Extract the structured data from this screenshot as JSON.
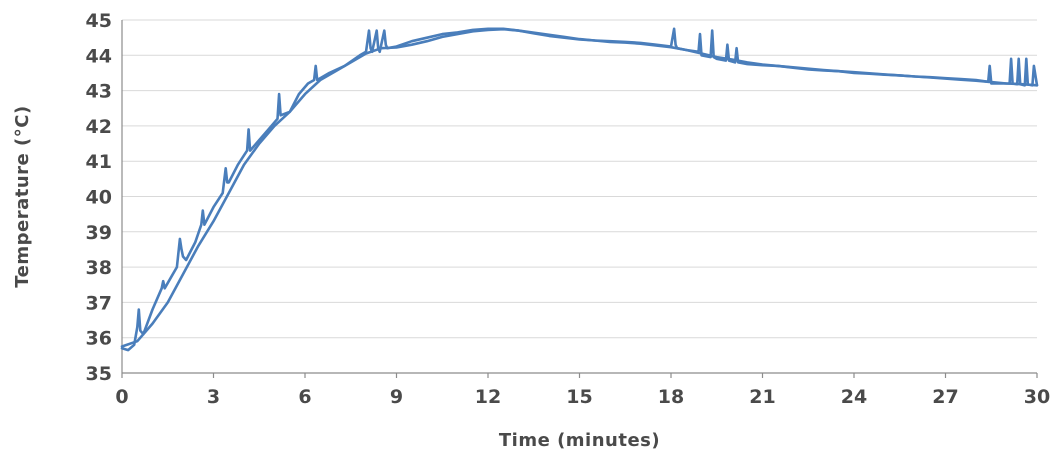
{
  "chart_data": {
    "type": "line",
    "title": "",
    "xlabel": "Time (minutes)",
    "ylabel": "Temperature (°C)",
    "xlim": [
      0,
      30
    ],
    "ylim": [
      35,
      45
    ],
    "x_ticks": [
      0,
      3,
      6,
      9,
      12,
      15,
      18,
      21,
      24,
      27,
      30
    ],
    "y_ticks": [
      35,
      36,
      37,
      38,
      39,
      40,
      41,
      42,
      43,
      44,
      45
    ],
    "grid": "horizontal",
    "legend": "none",
    "series_color": "#4a7ebb",
    "series": [
      {
        "x": [
          0,
          0.2,
          0.4,
          0.5,
          0.55,
          0.6,
          0.7,
          1.0,
          1.3,
          1.35,
          1.4,
          1.6,
          1.8,
          1.9,
          1.95,
          2.0,
          2.1,
          2.4,
          2.6,
          2.65,
          2.7,
          3.0,
          3.3,
          3.4,
          3.45,
          3.5,
          3.8,
          4.1,
          4.15,
          4.2,
          4.5,
          4.9,
          5.1,
          5.15,
          5.2,
          5.5,
          5.8,
          6.1,
          6.3,
          6.35,
          6.4,
          6.8,
          7.3,
          7.8,
          8.0,
          8.1,
          8.15,
          8.2,
          8.35,
          8.4,
          8.45,
          8.6,
          8.65,
          8.7,
          9.0,
          9.5,
          10.0,
          10.5,
          11.0,
          11.5,
          12.0,
          12.5,
          13.0,
          13.5,
          14.0,
          14.5,
          15.0,
          15.5,
          16.0,
          16.5,
          17.0,
          17.5,
          18.0,
          18.1,
          18.15,
          18.2,
          18.5,
          18.9,
          18.95,
          19.0,
          19.3,
          19.35,
          19.4,
          19.5,
          19.8,
          19.85,
          19.9,
          20.1,
          20.15,
          20.2,
          20.5,
          21.0,
          21.5,
          22.0,
          22.5,
          23.0,
          23.5,
          24.0,
          24.5,
          25.0,
          25.5,
          26.0,
          26.5,
          27.0,
          27.5,
          28.0,
          28.4,
          28.45,
          28.5,
          28.8,
          29.1,
          29.15,
          29.2,
          29.35,
          29.4,
          29.45,
          29.6,
          29.65,
          29.7,
          29.85,
          29.9,
          30.0
        ],
        "y": [
          35.7,
          35.65,
          35.8,
          36.3,
          36.8,
          36.2,
          36.1,
          36.8,
          37.4,
          37.6,
          37.4,
          37.7,
          38.0,
          38.8,
          38.5,
          38.3,
          38.2,
          38.7,
          39.2,
          39.6,
          39.2,
          39.7,
          40.1,
          40.8,
          40.4,
          40.4,
          40.9,
          41.3,
          41.9,
          41.3,
          41.6,
          42.0,
          42.2,
          42.9,
          42.3,
          42.4,
          42.9,
          43.2,
          43.3,
          43.7,
          43.3,
          43.5,
          43.7,
          44.0,
          44.1,
          44.7,
          44.2,
          44.1,
          44.7,
          44.2,
          44.1,
          44.7,
          44.3,
          44.2,
          44.25,
          44.4,
          44.5,
          44.6,
          44.65,
          44.72,
          44.75,
          44.75,
          44.7,
          44.62,
          44.55,
          44.5,
          44.45,
          44.42,
          44.4,
          44.38,
          44.35,
          44.3,
          44.25,
          44.75,
          44.3,
          44.2,
          44.15,
          44.1,
          44.6,
          44.0,
          43.95,
          44.7,
          43.95,
          43.9,
          43.85,
          44.3,
          43.85,
          43.8,
          44.2,
          43.8,
          43.75,
          43.72,
          43.7,
          43.65,
          43.6,
          43.57,
          43.55,
          43.5,
          43.48,
          43.45,
          43.43,
          43.4,
          43.38,
          43.35,
          43.33,
          43.3,
          43.25,
          43.7,
          43.2,
          43.2,
          43.2,
          43.9,
          43.2,
          43.18,
          43.9,
          43.18,
          43.15,
          43.9,
          43.18,
          43.15,
          43.7,
          43.15
        ]
      },
      {
        "x": [
          0,
          0.5,
          1.0,
          1.5,
          2.0,
          2.5,
          3.0,
          3.5,
          4.0,
          4.5,
          5.0,
          5.5,
          6.0,
          6.5,
          7.0,
          7.5,
          8.0,
          8.5,
          9.0,
          9.5,
          10.0,
          10.5,
          11.0,
          11.5,
          12.0,
          12.5,
          13.0,
          13.5,
          14.0,
          14.5,
          15.0,
          15.5,
          16.0,
          16.5,
          17.0,
          17.5,
          18.0,
          18.5,
          19.0,
          19.5,
          20.0,
          20.5,
          21.0,
          21.5,
          22.0,
          22.5,
          23.0,
          23.5,
          24.0,
          24.5,
          25.0,
          25.5,
          26.0,
          26.5,
          27.0,
          27.5,
          28.0,
          28.5,
          29.0,
          29.5,
          30.0
        ],
        "y": [
          35.75,
          35.9,
          36.4,
          37.0,
          37.8,
          38.6,
          39.3,
          40.1,
          40.9,
          41.5,
          42.0,
          42.4,
          42.9,
          43.3,
          43.55,
          43.8,
          44.05,
          44.2,
          44.22,
          44.3,
          44.4,
          44.52,
          44.6,
          44.68,
          44.72,
          44.74,
          44.7,
          44.64,
          44.58,
          44.52,
          44.46,
          44.42,
          44.38,
          44.36,
          44.33,
          44.28,
          44.23,
          44.15,
          44.05,
          43.95,
          43.88,
          43.8,
          43.74,
          43.7,
          43.66,
          43.62,
          43.58,
          43.55,
          43.52,
          43.49,
          43.46,
          43.43,
          43.4,
          43.37,
          43.34,
          43.31,
          43.28,
          43.24,
          43.2,
          43.18,
          43.15
        ]
      }
    ]
  }
}
